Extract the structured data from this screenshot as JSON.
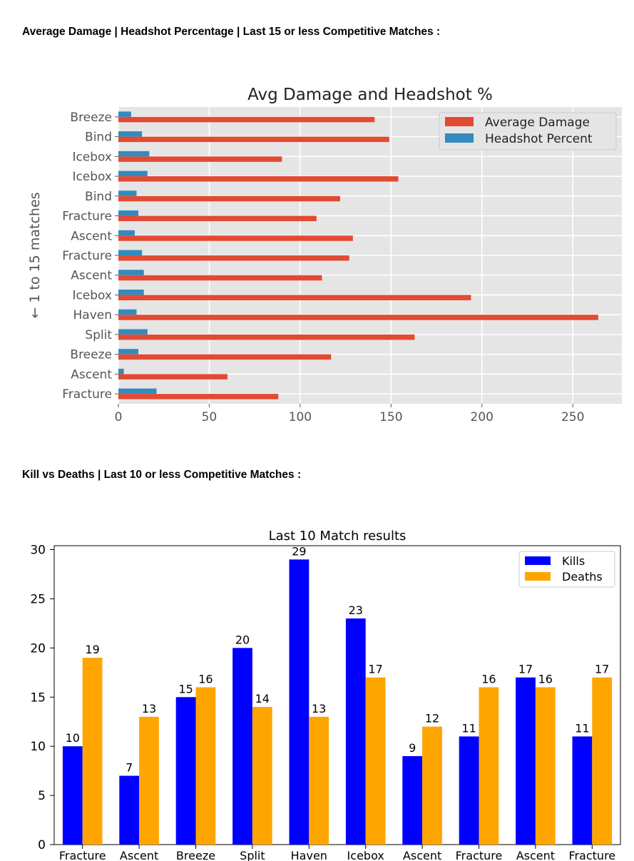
{
  "headings": {
    "damage": "Average Damage | Headshot Percentage | Last 15 or less Competitive Matches :",
    "kd": "Kill vs Deaths | Last 10 or less Competitive Matches :"
  },
  "chart_data": [
    {
      "type": "bar",
      "orientation": "horizontal",
      "title": "Avg Damage and Headshot %",
      "xlabel": "",
      "ylabel": "← 1 to 15 matches",
      "categories": [
        "Breeze",
        "Bind",
        "Icebox",
        "Icebox",
        "Bind",
        "Fracture",
        "Ascent",
        "Fracture",
        "Ascent",
        "Icebox",
        "Haven",
        "Split",
        "Breeze",
        "Ascent",
        "Fracture"
      ],
      "series": [
        {
          "name": "Average Damage",
          "color": "#e24a33",
          "values": [
            141,
            149,
            90,
            154,
            122,
            109,
            129,
            127,
            112,
            194,
            264,
            163,
            117,
            60,
            88
          ]
        },
        {
          "name": "Headshot Percent",
          "color": "#348abd",
          "values": [
            7,
            13,
            17,
            16,
            10,
            11,
            9,
            13,
            14,
            14,
            10,
            16,
            11,
            3,
            21
          ]
        }
      ],
      "xlim": [
        0,
        277
      ],
      "xticks": [
        "0",
        "50",
        "100",
        "150",
        "200",
        "250"
      ],
      "grid": true,
      "legend_position": "top-right"
    },
    {
      "type": "bar",
      "title": "Last 10 Match results",
      "xlabel": "",
      "ylabel": "",
      "categories": [
        "Fracture",
        "Ascent",
        "Breeze",
        "Split",
        "Haven",
        "Icebox",
        "Ascent",
        "Fracture",
        "Ascent",
        "Fracture"
      ],
      "series": [
        {
          "name": "Kills",
          "color": "#0000ff",
          "values": [
            10,
            7,
            15,
            20,
            29,
            23,
            9,
            11,
            17,
            11
          ]
        },
        {
          "name": "Deaths",
          "color": "#ffa500",
          "values": [
            19,
            13,
            16,
            14,
            13,
            17,
            12,
            16,
            16,
            17
          ]
        }
      ],
      "ylim": [
        0,
        30.4
      ],
      "yticks": [
        "0",
        "5",
        "10",
        "15",
        "20",
        "25",
        "30"
      ],
      "grid": false,
      "legend_position": "top-right"
    }
  ]
}
